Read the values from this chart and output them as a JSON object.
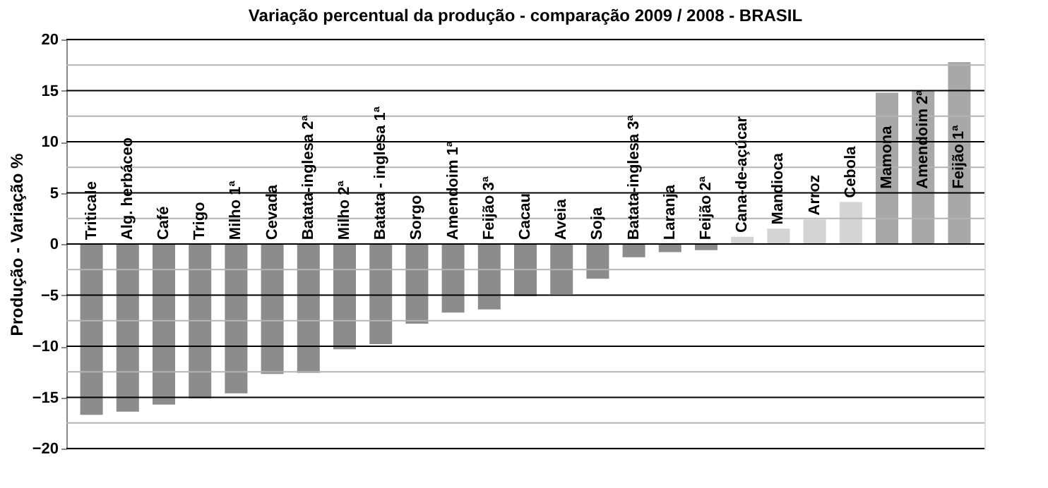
{
  "chart_data": {
    "type": "bar",
    "title": "Variação percentual  da produção - comparação  2009 / 2008 -  BRASIL",
    "ylabel": "Produção - Variação %",
    "categories": [
      "Triticale",
      "Alg. herbáceo",
      "Café",
      "Trigo",
      "Milho 1ª",
      "Cevada",
      "Batata-inglesa 2ª",
      "Milho 2ª",
      "Batata - inglesa 1ª",
      "Sorgo",
      "Amendoim 1ª",
      "Feijão 3ª",
      "Cacau",
      "Aveia",
      "Soja",
      "Batata-inglesa 3ª",
      "Laranja",
      "Feijão 2ª",
      "Cana-de-açúcar",
      "Mandioca",
      "Arroz",
      "Cebola",
      "Mamona",
      "Amendoim 2ª",
      "Feijão 1ª"
    ],
    "values": [
      -16.7,
      -16.4,
      -15.7,
      -15.1,
      -14.6,
      -12.7,
      -12.6,
      -10.3,
      -9.8,
      -7.8,
      -6.7,
      -6.4,
      -5.1,
      -4.9,
      -3.4,
      -1.3,
      -0.8,
      -0.6,
      0.7,
      1.5,
      2.4,
      4.1,
      14.8,
      15.0,
      17.8
    ],
    "colors": [
      "#8c8c8c",
      "#8c8c8c",
      "#8c8c8c",
      "#8c8c8c",
      "#8c8c8c",
      "#8c8c8c",
      "#8c8c8c",
      "#8c8c8c",
      "#8c8c8c",
      "#8c8c8c",
      "#8c8c8c",
      "#8c8c8c",
      "#8c8c8c",
      "#8c8c8c",
      "#8c8c8c",
      "#8c8c8c",
      "#8c8c8c",
      "#8c8c8c",
      "#d4d4d4",
      "#d4d4d4",
      "#d4d4d4",
      "#d4d4d4",
      "#a8a8a8",
      "#a8a8a8",
      "#a8a8a8"
    ],
    "ylim": [
      -20,
      20
    ],
    "yticks": [
      -20,
      -15,
      -10,
      -5,
      0,
      5,
      10,
      15,
      20
    ],
    "grid": "y"
  }
}
